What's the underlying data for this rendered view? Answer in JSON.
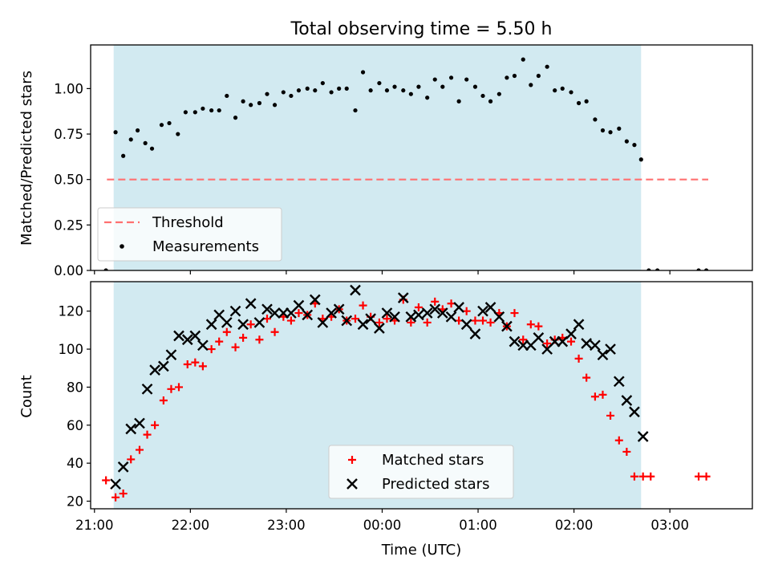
{
  "chart_data": {
    "title": "Total observing time = 5.50 h",
    "xlabel": "Time (UTC)",
    "x_tick_labels": [
      "21:00",
      "22:00",
      "23:00",
      "00:00",
      "01:00",
      "02:00",
      "03:00"
    ],
    "x_ticks_hours": [
      21,
      22,
      23,
      24,
      25,
      26,
      27
    ],
    "xlim_hours": [
      20.96,
      27.86
    ],
    "observing_window_hours": [
      21.2,
      26.7
    ],
    "observing_window_color": "#add8e6",
    "panels": [
      {
        "type": "scatter",
        "ylabel": "Matched/Predicted stars",
        "ylim": [
          0,
          1.24
        ],
        "y_tick_labels": [
          "0.00",
          "0.25",
          "0.50",
          "0.75",
          "1.00"
        ],
        "y_ticks": [
          0,
          0.25,
          0.5,
          0.75,
          1.0
        ],
        "legend_position": "lower-left",
        "legend": {
          "threshold": "Threshold",
          "measurements": "Measurements"
        },
        "threshold": {
          "value": 0.5,
          "x_range_hours": [
            21.13,
            27.4
          ],
          "color": "#ff7070"
        },
        "series": [
          {
            "name": "Measurements",
            "color": "#000000",
            "points": [
              [
                21.12,
                0.0
              ],
              [
                21.22,
                0.76
              ],
              [
                21.3,
                0.63
              ],
              [
                21.38,
                0.72
              ],
              [
                21.45,
                0.77
              ],
              [
                21.53,
                0.7
              ],
              [
                21.6,
                0.67
              ],
              [
                21.7,
                0.8
              ],
              [
                21.78,
                0.81
              ],
              [
                21.87,
                0.75
              ],
              [
                21.95,
                0.87
              ],
              [
                22.05,
                0.87
              ],
              [
                22.13,
                0.89
              ],
              [
                22.22,
                0.88
              ],
              [
                22.3,
                0.88
              ],
              [
                22.38,
                0.96
              ],
              [
                22.47,
                0.84
              ],
              [
                22.55,
                0.93
              ],
              [
                22.63,
                0.91
              ],
              [
                22.72,
                0.92
              ],
              [
                22.8,
                0.97
              ],
              [
                22.88,
                0.91
              ],
              [
                22.97,
                0.98
              ],
              [
                23.05,
                0.96
              ],
              [
                23.13,
                0.99
              ],
              [
                23.22,
                1.0
              ],
              [
                23.3,
                0.99
              ],
              [
                23.38,
                1.03
              ],
              [
                23.47,
                0.98
              ],
              [
                23.55,
                1.0
              ],
              [
                23.63,
                1.0
              ],
              [
                23.72,
                0.88
              ],
              [
                23.8,
                1.09
              ],
              [
                23.88,
                0.99
              ],
              [
                23.97,
                1.03
              ],
              [
                24.05,
                0.99
              ],
              [
                24.13,
                1.01
              ],
              [
                24.22,
                0.99
              ],
              [
                24.3,
                0.97
              ],
              [
                24.38,
                1.01
              ],
              [
                24.47,
                0.95
              ],
              [
                24.55,
                1.05
              ],
              [
                24.63,
                1.01
              ],
              [
                24.72,
                1.06
              ],
              [
                24.8,
                0.93
              ],
              [
                24.88,
                1.05
              ],
              [
                24.97,
                1.01
              ],
              [
                25.05,
                0.96
              ],
              [
                25.13,
                0.93
              ],
              [
                25.22,
                0.97
              ],
              [
                25.3,
                1.06
              ],
              [
                25.38,
                1.07
              ],
              [
                25.47,
                1.16
              ],
              [
                25.55,
                1.02
              ],
              [
                25.63,
                1.07
              ],
              [
                25.72,
                1.12
              ],
              [
                25.8,
                0.99
              ],
              [
                25.88,
                1.0
              ],
              [
                25.97,
                0.98
              ],
              [
                26.05,
                0.92
              ],
              [
                26.13,
                0.93
              ],
              [
                26.22,
                0.83
              ],
              [
                26.3,
                0.77
              ],
              [
                26.38,
                0.76
              ],
              [
                26.47,
                0.78
              ],
              [
                26.55,
                0.71
              ],
              [
                26.63,
                0.69
              ],
              [
                26.7,
                0.61
              ],
              [
                26.78,
                0.0
              ],
              [
                26.87,
                0.0
              ],
              [
                27.3,
                0.0
              ],
              [
                27.38,
                0.0
              ]
            ]
          }
        ]
      },
      {
        "type": "scatter",
        "ylabel": "Count",
        "ylim": [
          16,
          135.5
        ],
        "y_tick_labels": [
          "20",
          "40",
          "60",
          "80",
          "100",
          "120"
        ],
        "y_ticks": [
          20,
          40,
          60,
          80,
          100,
          120
        ],
        "legend_position": "lower-center",
        "series": [
          {
            "name": "Matched stars",
            "color": "#ff0000",
            "marker": "plus",
            "points": [
              [
                21.12,
                31
              ],
              [
                21.22,
                22
              ],
              [
                21.3,
                24
              ],
              [
                21.38,
                42
              ],
              [
                21.47,
                47
              ],
              [
                21.55,
                55
              ],
              [
                21.63,
                60
              ],
              [
                21.72,
                73
              ],
              [
                21.8,
                79
              ],
              [
                21.88,
                80
              ],
              [
                21.97,
                92
              ],
              [
                22.05,
                93
              ],
              [
                22.13,
                91
              ],
              [
                22.22,
                100
              ],
              [
                22.3,
                104
              ],
              [
                22.38,
                109
              ],
              [
                22.47,
                101
              ],
              [
                22.55,
                106
              ],
              [
                22.63,
                113
              ],
              [
                22.72,
                105
              ],
              [
                22.8,
                116
              ],
              [
                22.88,
                109
              ],
              [
                22.97,
                117
              ],
              [
                23.05,
                115
              ],
              [
                23.13,
                119
              ],
              [
                23.22,
                118
              ],
              [
                23.3,
                124
              ],
              [
                23.38,
                116
              ],
              [
                23.47,
                117
              ],
              [
                23.55,
                121
              ],
              [
                23.63,
                115
              ],
              [
                23.72,
                116
              ],
              [
                23.8,
                123
              ],
              [
                23.88,
                117
              ],
              [
                23.97,
                114
              ],
              [
                24.05,
                116
              ],
              [
                24.13,
                115
              ],
              [
                24.22,
                126
              ],
              [
                24.3,
                114
              ],
              [
                24.38,
                122
              ],
              [
                24.47,
                114
              ],
              [
                24.55,
                125
              ],
              [
                24.63,
                121
              ],
              [
                24.72,
                124
              ],
              [
                24.8,
                115
              ],
              [
                24.88,
                120
              ],
              [
                24.97,
                115
              ],
              [
                25.05,
                115
              ],
              [
                25.13,
                114
              ],
              [
                25.22,
                119
              ],
              [
                25.3,
                112
              ],
              [
                25.38,
                119
              ],
              [
                25.47,
                105
              ],
              [
                25.55,
                113
              ],
              [
                25.63,
                112
              ],
              [
                25.72,
                103
              ],
              [
                25.8,
                105
              ],
              [
                25.88,
                106
              ],
              [
                25.97,
                104
              ],
              [
                26.05,
                95
              ],
              [
                26.13,
                85
              ],
              [
                26.22,
                75
              ],
              [
                26.3,
                76
              ],
              [
                26.38,
                65
              ],
              [
                26.47,
                52
              ],
              [
                26.55,
                46
              ],
              [
                26.63,
                33
              ],
              [
                26.72,
                33
              ],
              [
                26.8,
                33
              ],
              [
                27.3,
                33
              ],
              [
                27.38,
                33
              ]
            ]
          },
          {
            "name": "Predicted stars",
            "color": "#000000",
            "marker": "x",
            "points": [
              [
                21.22,
                29
              ],
              [
                21.3,
                38
              ],
              [
                21.38,
                58
              ],
              [
                21.47,
                61
              ],
              [
                21.55,
                79
              ],
              [
                21.63,
                89
              ],
              [
                21.72,
                91
              ],
              [
                21.8,
                97
              ],
              [
                21.88,
                107
              ],
              [
                21.97,
                105
              ],
              [
                22.05,
                107
              ],
              [
                22.13,
                102
              ],
              [
                22.22,
                113
              ],
              [
                22.3,
                118
              ],
              [
                22.38,
                114
              ],
              [
                22.47,
                120
              ],
              [
                22.55,
                113
              ],
              [
                22.63,
                124
              ],
              [
                22.72,
                114
              ],
              [
                22.8,
                121
              ],
              [
                22.88,
                119
              ],
              [
                22.97,
                119
              ],
              [
                23.05,
                119
              ],
              [
                23.13,
                123
              ],
              [
                23.22,
                118
              ],
              [
                23.3,
                126
              ],
              [
                23.38,
                114
              ],
              [
                23.47,
                119
              ],
              [
                23.55,
                121
              ],
              [
                23.63,
                115
              ],
              [
                23.72,
                131
              ],
              [
                23.8,
                113
              ],
              [
                23.88,
                116
              ],
              [
                23.97,
                111
              ],
              [
                24.05,
                119
              ],
              [
                24.13,
                117
              ],
              [
                24.22,
                127
              ],
              [
                24.3,
                117
              ],
              [
                24.38,
                118
              ],
              [
                24.47,
                119
              ],
              [
                24.55,
                121
              ],
              [
                24.63,
                119
              ],
              [
                24.72,
                117
              ],
              [
                24.8,
                122
              ],
              [
                24.88,
                113
              ],
              [
                24.97,
                108
              ],
              [
                25.05,
                120
              ],
              [
                25.13,
                122
              ],
              [
                25.22,
                117
              ],
              [
                25.3,
                112
              ],
              [
                25.38,
                104
              ],
              [
                25.47,
                102
              ],
              [
                25.55,
                102
              ],
              [
                25.63,
                106
              ],
              [
                25.72,
                100
              ],
              [
                25.8,
                104
              ],
              [
                25.88,
                104
              ],
              [
                25.97,
                108
              ],
              [
                26.05,
                113
              ],
              [
                26.13,
                103
              ],
              [
                26.22,
                102
              ],
              [
                26.3,
                97
              ],
              [
                26.38,
                100
              ],
              [
                26.47,
                83
              ],
              [
                26.55,
                73
              ],
              [
                26.63,
                67
              ],
              [
                26.72,
                54
              ]
            ]
          }
        ]
      }
    ]
  }
}
